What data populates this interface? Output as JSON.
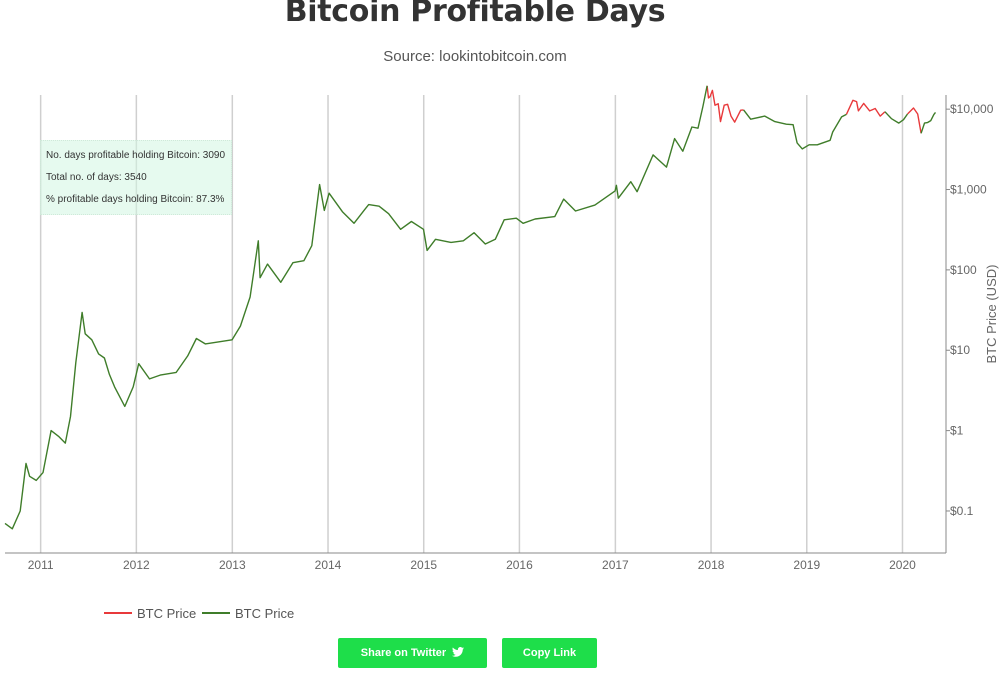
{
  "header": {
    "title": "Bitcoin Profitable Days",
    "subtitle": "Source: lookintobitcoin.com"
  },
  "stats": {
    "line1": "No. days profitable holding Bitcoin: 3090",
    "line2": "Total no. of days: 3540",
    "line3": "% profitable days holding Bitcoin: 87.3%"
  },
  "buttons": {
    "twitter_label": "Share on Twitter",
    "copy_label": "Copy Link"
  },
  "colors": {
    "profitable": "#3f7d2a",
    "unprofitable": "#e8393b",
    "button": "#1ede4a"
  },
  "icons": [
    "twitter-icon"
  ],
  "chart_data": {
    "type": "line",
    "title": "Bitcoin Profitable Days",
    "subtitle": "Source: lookintobitcoin.com",
    "xlabel": "",
    "ylabel": "BTC Price (USD)",
    "yscale": "log",
    "ylim": [
      0.03,
      15000
    ],
    "xlim": [
      "2010-08-18",
      "2020-06-15"
    ],
    "x_ticks": [
      "2011",
      "2012",
      "2013",
      "2014",
      "2015",
      "2016",
      "2017",
      "2018",
      "2019",
      "2020"
    ],
    "y_ticks": [
      "$0.1",
      "$1",
      "$10",
      "$100",
      "$1,000",
      "$10,000"
    ],
    "y_tick_values": [
      0.1,
      1,
      10,
      100,
      1000,
      10000
    ],
    "grid": "vertical",
    "legend_position": "bottom-left",
    "series": [
      {
        "name": "BTC Price",
        "color": "#e8393b",
        "points": [
          [
            "2017-12-17",
            19500
          ],
          [
            "2017-12-22",
            13800
          ],
          [
            "2017-12-28",
            14300
          ],
          [
            "2018-01-06",
            17100
          ],
          [
            "2018-01-16",
            11200
          ],
          [
            "2018-01-28",
            11700
          ],
          [
            "2018-02-06",
            7000
          ],
          [
            "2018-02-20",
            11200
          ],
          [
            "2018-03-05",
            11500
          ],
          [
            "2018-03-18",
            8200
          ],
          [
            "2018-04-01",
            6900
          ],
          [
            "2018-04-24",
            9700
          ],
          [
            "2018-05-05",
            9800
          ],
          null,
          [
            "2019-06-01",
            8600
          ],
          [
            "2019-06-26",
            12900
          ],
          [
            "2019-07-10",
            12400
          ],
          [
            "2019-07-17",
            9500
          ],
          [
            "2019-08-06",
            11800
          ],
          [
            "2019-08-29",
            9500
          ],
          [
            "2019-09-19",
            10200
          ],
          [
            "2019-10-08",
            8200
          ],
          [
            "2019-10-26",
            9300
          ],
          null,
          [
            "2020-01-20",
            8700
          ],
          [
            "2020-02-12",
            10350
          ],
          [
            "2020-02-28",
            8700
          ],
          [
            "2020-03-12",
            5000
          ]
        ]
      },
      {
        "name": "BTC Price",
        "color": "#3f7d2a",
        "points": [
          [
            "2010-08-18",
            0.07
          ],
          [
            "2010-09-15",
            0.06
          ],
          [
            "2010-10-15",
            0.1
          ],
          [
            "2010-11-06",
            0.39
          ],
          [
            "2010-11-20",
            0.27
          ],
          [
            "2010-12-15",
            0.24
          ],
          [
            "2011-01-10",
            0.3
          ],
          [
            "2011-02-10",
            1.0
          ],
          [
            "2011-03-10",
            0.85
          ],
          [
            "2011-04-05",
            0.7
          ],
          [
            "2011-04-25",
            1.5
          ],
          [
            "2011-05-15",
            7.0
          ],
          [
            "2011-06-08",
            29.6
          ],
          [
            "2011-06-20",
            16
          ],
          [
            "2011-07-15",
            13.5
          ],
          [
            "2011-08-10",
            9
          ],
          [
            "2011-09-01",
            8
          ],
          [
            "2011-09-20",
            5
          ],
          [
            "2011-10-10",
            3.5
          ],
          [
            "2011-11-18",
            2.0
          ],
          [
            "2011-12-20",
            3.5
          ],
          [
            "2012-01-10",
            6.8
          ],
          [
            "2012-02-20",
            4.4
          ],
          [
            "2012-04-01",
            4.9
          ],
          [
            "2012-06-01",
            5.3
          ],
          [
            "2012-07-15",
            8.5
          ],
          [
            "2012-08-17",
            14
          ],
          [
            "2012-09-20",
            12
          ],
          [
            "2012-12-31",
            13.5
          ],
          [
            "2013-02-01",
            20
          ],
          [
            "2013-03-10",
            46
          ],
          [
            "2013-04-10",
            230
          ],
          [
            "2013-04-17",
            80
          ],
          [
            "2013-05-15",
            118
          ],
          [
            "2013-07-05",
            70
          ],
          [
            "2013-08-20",
            123
          ],
          [
            "2013-10-01",
            130
          ],
          [
            "2013-10-31",
            200
          ],
          [
            "2013-11-20",
            650
          ],
          [
            "2013-11-30",
            1150
          ],
          [
            "2013-12-18",
            550
          ],
          [
            "2014-01-05",
            900
          ],
          [
            "2014-02-25",
            530
          ],
          [
            "2014-04-10",
            380
          ],
          [
            "2014-05-20",
            560
          ],
          [
            "2014-06-05",
            650
          ],
          [
            "2014-07-15",
            620
          ],
          [
            "2014-08-20",
            500
          ],
          [
            "2014-10-05",
            320
          ],
          [
            "2014-11-15",
            400
          ],
          [
            "2014-12-31",
            320
          ],
          [
            "2015-01-14",
            175
          ],
          [
            "2015-02-15",
            240
          ],
          [
            "2015-04-15",
            220
          ],
          [
            "2015-06-01",
            230
          ],
          [
            "2015-07-12",
            290
          ],
          [
            "2015-08-24",
            210
          ],
          [
            "2015-10-01",
            240
          ],
          [
            "2015-11-04",
            420
          ],
          [
            "2015-12-20",
            440
          ],
          [
            "2016-01-15",
            380
          ],
          [
            "2016-03-01",
            430
          ],
          [
            "2016-05-15",
            460
          ],
          [
            "2016-06-18",
            760
          ],
          [
            "2016-08-02",
            540
          ],
          [
            "2016-10-15",
            640
          ],
          [
            "2016-12-31",
            960
          ],
          [
            "2017-01-05",
            1130
          ],
          [
            "2017-01-12",
            780
          ],
          [
            "2017-03-01",
            1250
          ],
          [
            "2017-03-25",
            940
          ],
          [
            "2017-05-25",
            2700
          ],
          [
            "2017-07-15",
            1900
          ],
          [
            "2017-08-15",
            4300
          ],
          [
            "2017-09-15",
            3000
          ],
          [
            "2017-10-20",
            6000
          ],
          [
            "2017-11-12",
            5800
          ],
          [
            "2017-12-01",
            10800
          ],
          [
            "2017-12-17",
            19500
          ],
          null,
          [
            "2018-05-05",
            9800
          ],
          [
            "2018-06-01",
            7500
          ],
          [
            "2018-07-25",
            8200
          ],
          [
            "2018-09-01",
            7000
          ],
          [
            "2018-10-15",
            6500
          ],
          [
            "2018-11-10",
            6400
          ],
          [
            "2018-11-25",
            3800
          ],
          [
            "2018-12-15",
            3200
          ],
          [
            "2019-01-10",
            3600
          ],
          [
            "2019-02-10",
            3600
          ],
          [
            "2019-03-31",
            4100
          ],
          [
            "2019-04-10",
            5200
          ],
          [
            "2019-05-14",
            8000
          ],
          [
            "2019-06-01",
            8600
          ],
          null,
          [
            "2019-10-26",
            9300
          ],
          [
            "2019-11-20",
            7600
          ],
          [
            "2019-12-18",
            6700
          ],
          [
            "2020-01-05",
            7400
          ],
          [
            "2020-01-20",
            8700
          ],
          null,
          [
            "2020-03-12",
            5000
          ],
          [
            "2020-03-25",
            6700
          ],
          [
            "2020-04-05",
            6800
          ],
          [
            "2020-04-18",
            7200
          ],
          [
            "2020-04-30",
            8600
          ],
          [
            "2020-05-06",
            9100
          ]
        ]
      }
    ]
  }
}
